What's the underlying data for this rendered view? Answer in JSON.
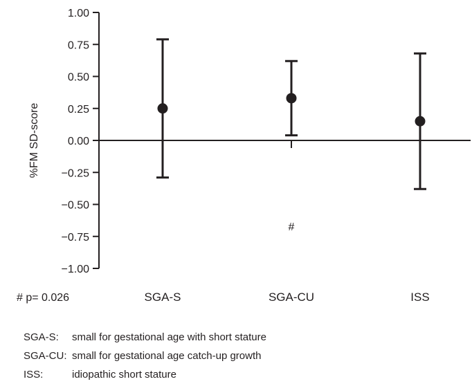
{
  "chart_data": {
    "type": "scatter",
    "ylabel": "%FM SD-score",
    "xlabel": "",
    "ylim": [
      -1.0,
      1.0
    ],
    "yticks": [
      "1.00",
      "0.75",
      "0.50",
      "0.25",
      "0.00",
      "−0.25",
      "−0.50",
      "−0.75",
      "−1.00"
    ],
    "ytick_values": [
      1.0,
      0.75,
      0.5,
      0.25,
      0.0,
      -0.25,
      -0.5,
      -0.75,
      -1.0
    ],
    "categories": [
      "SGA-S",
      "SGA-CU",
      "ISS"
    ],
    "series": [
      {
        "values": [
          0.25,
          0.33,
          0.15
        ],
        "error_low": [
          -0.29,
          0.04,
          -0.38
        ],
        "error_high": [
          0.79,
          0.62,
          0.68
        ]
      }
    ],
    "grid": false,
    "annotations": [
      {
        "text": "#",
        "category": "SGA-CU",
        "y": -0.67
      },
      {
        "text": "# p= 0.026"
      }
    ]
  },
  "legend": [
    {
      "abbr": "SGA-S:",
      "text": "small for gestational age with short stature"
    },
    {
      "abbr": "SGA-CU:",
      "text": "small for gestational age catch-up growth"
    },
    {
      "abbr": "ISS:",
      "text": "idiopathic short stature"
    }
  ]
}
